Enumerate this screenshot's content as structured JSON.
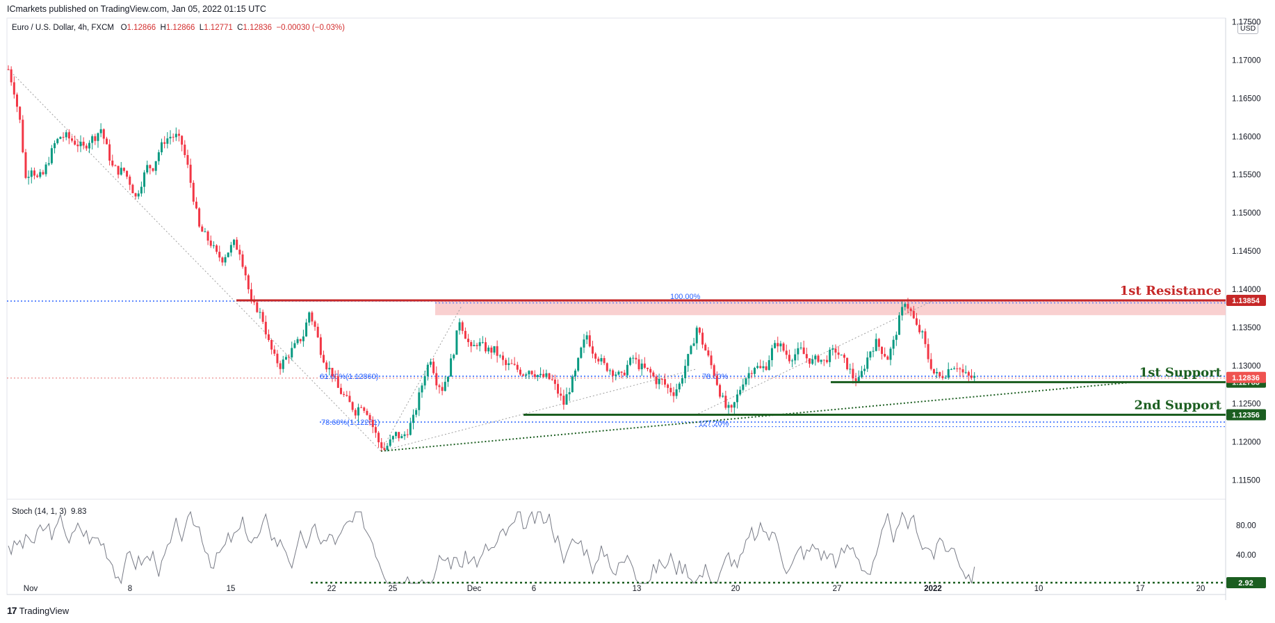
{
  "header": {
    "published": "ICmarkets published on TradingView.com, Jan 05, 2022 01:15 UTC"
  },
  "legend": {
    "symbol": "Euro / U.S. Dollar, 4h, FXCM",
    "open_label": "O",
    "open": "1.12866",
    "high_label": "H",
    "high": "1.12866",
    "low_label": "L",
    "low": "1.12771",
    "close_label": "C",
    "close": "1.12836",
    "change": "−0.00030 (−0.03%)"
  },
  "currency": "USD",
  "stoch_legend": {
    "name": "Stoch (14, 1, 3)",
    "value": "9.83"
  },
  "footer": {
    "brand": "TradingView",
    "logo_glyph": "17"
  },
  "colors": {
    "up": "#089981",
    "down": "#f23645",
    "resistance": "#c62828",
    "support": "#1b5e20",
    "fib": "#2962ff",
    "zone": "#f8c8c8",
    "price_line": "#e57373"
  },
  "chart_data": {
    "type": "candlestick",
    "symbol": "EURUSD",
    "timeframe": "4h",
    "ylim": [
      1.1125,
      1.1755
    ],
    "yticks": [
      "1.17500",
      "1.17000",
      "1.16500",
      "1.16000",
      "1.15500",
      "1.15000",
      "1.14500",
      "1.14000",
      "1.13500",
      "1.13000",
      "1.12500",
      "1.12000",
      "1.11500"
    ],
    "xticks": [
      "Nov",
      "8",
      "15",
      "22",
      "25",
      "Dec",
      "6",
      "13",
      "20",
      "27",
      "2022",
      "10",
      "17",
      "20"
    ],
    "levels": [
      {
        "name": "1st Resistance",
        "price": 1.13854,
        "badge": "1.13854"
      },
      {
        "name": "1st Support",
        "price": 1.12783,
        "badge": "1.12783"
      },
      {
        "name": "2nd Support",
        "price": 1.12356,
        "badge": "1.12356"
      },
      {
        "name": "",
        "price": 1.12836,
        "badge": "1.12836"
      }
    ],
    "fib_labels": [
      "100.00%",
      "61.80%(1.12860)",
      "78.60%(1.12261)",
      "78.60%",
      "127.20%"
    ],
    "resistance_zone": [
      1.1366,
      1.13854
    ],
    "close_path": [
      [
        0,
        1.1688
      ],
      [
        2,
        1.166
      ],
      [
        4,
        1.162
      ],
      [
        6,
        1.1545
      ],
      [
        8,
        1.156
      ],
      [
        10,
        1.1545
      ],
      [
        12,
        1.155
      ],
      [
        14,
        1.157
      ],
      [
        16,
        1.159
      ],
      [
        18,
        1.16
      ],
      [
        20,
        1.16
      ],
      [
        22,
        1.1595
      ],
      [
        24,
        1.159
      ],
      [
        26,
        1.1585
      ],
      [
        28,
        1.1595
      ],
      [
        30,
        1.16
      ],
      [
        32,
        1.161
      ],
      [
        34,
        1.1585
      ],
      [
        36,
        1.156
      ],
      [
        38,
        1.1555
      ],
      [
        40,
        1.1555
      ],
      [
        42,
        1.154
      ],
      [
        44,
        1.152
      ],
      [
        46,
        1.154
      ],
      [
        48,
        1.156
      ],
      [
        50,
        1.156
      ],
      [
        52,
        1.158
      ],
      [
        54,
        1.1595
      ],
      [
        56,
        1.16
      ],
      [
        58,
        1.16
      ],
      [
        60,
        1.159
      ],
      [
        62,
        1.156
      ],
      [
        64,
        1.152
      ],
      [
        66,
        1.148
      ],
      [
        68,
        1.147
      ],
      [
        70,
        1.146
      ],
      [
        72,
        1.1445
      ],
      [
        74,
        1.144
      ],
      [
        76,
        1.145
      ],
      [
        78,
        1.146
      ],
      [
        80,
        1.145
      ],
      [
        82,
        1.142
      ],
      [
        84,
        1.138
      ],
      [
        86,
        1.1375
      ],
      [
        88,
        1.136
      ],
      [
        90,
        1.133
      ],
      [
        92,
        1.131
      ],
      [
        94,
        1.13
      ],
      [
        96,
        1.131
      ],
      [
        98,
        1.132
      ],
      [
        100,
        1.133
      ],
      [
        102,
        1.134
      ],
      [
        104,
        1.137
      ],
      [
        106,
        1.135
      ],
      [
        108,
        1.132
      ],
      [
        110,
        1.13
      ],
      [
        112,
        1.129
      ],
      [
        114,
        1.127
      ],
      [
        116,
        1.126
      ],
      [
        118,
        1.125
      ],
      [
        120,
        1.124
      ],
      [
        122,
        1.125
      ],
      [
        124,
        1.124
      ],
      [
        126,
        1.122
      ],
      [
        128,
        1.12
      ],
      [
        130,
        1.119
      ],
      [
        132,
        1.12
      ],
      [
        134,
        1.121
      ],
      [
        136,
        1.1205
      ],
      [
        138,
        1.1215
      ],
      [
        140,
        1.123
      ],
      [
        142,
        1.126
      ],
      [
        144,
        1.129
      ],
      [
        146,
        1.131
      ],
      [
        148,
        1.128
      ],
      [
        150,
        1.127
      ],
      [
        152,
        1.129
      ],
      [
        154,
        1.132
      ],
      [
        156,
        1.136
      ],
      [
        158,
        1.134
      ],
      [
        160,
        1.132
      ],
      [
        162,
        1.133
      ],
      [
        164,
        1.1325
      ],
      [
        166,
        1.132
      ],
      [
        168,
        1.132
      ],
      [
        170,
        1.131
      ],
      [
        172,
        1.13
      ],
      [
        174,
        1.13
      ],
      [
        176,
        1.1295
      ],
      [
        178,
        1.129
      ],
      [
        180,
        1.1295
      ],
      [
        182,
        1.129
      ],
      [
        184,
        1.1285
      ],
      [
        186,
        1.1285
      ],
      [
        188,
        1.128
      ],
      [
        190,
        1.1265
      ],
      [
        192,
        1.125
      ],
      [
        194,
        1.127
      ],
      [
        196,
        1.129
      ],
      [
        198,
        1.132
      ],
      [
        200,
        1.134
      ],
      [
        202,
        1.132
      ],
      [
        204,
        1.131
      ],
      [
        206,
        1.13
      ],
      [
        208,
        1.1295
      ],
      [
        210,
        1.129
      ],
      [
        212,
        1.1285
      ],
      [
        214,
        1.13
      ],
      [
        216,
        1.131
      ],
      [
        218,
        1.13
      ],
      [
        220,
        1.1295
      ],
      [
        222,
        1.129
      ],
      [
        224,
        1.128
      ],
      [
        226,
        1.128
      ],
      [
        228,
        1.127
      ],
      [
        230,
        1.1265
      ],
      [
        232,
        1.1275
      ],
      [
        234,
        1.13
      ],
      [
        236,
        1.132
      ],
      [
        238,
        1.135
      ],
      [
        240,
        1.133
      ],
      [
        242,
        1.131
      ],
      [
        244,
        1.129
      ],
      [
        246,
        1.1265
      ],
      [
        248,
        1.1245
      ],
      [
        250,
        1.124
      ],
      [
        252,
        1.126
      ],
      [
        254,
        1.128
      ],
      [
        256,
        1.129
      ],
      [
        258,
        1.13
      ],
      [
        260,
        1.1295
      ],
      [
        262,
        1.13
      ],
      [
        264,
        1.132
      ],
      [
        266,
        1.133
      ],
      [
        268,
        1.132
      ],
      [
        270,
        1.131
      ],
      [
        272,
        1.1315
      ],
      [
        274,
        1.132
      ],
      [
        276,
        1.131
      ],
      [
        278,
        1.1305
      ],
      [
        280,
        1.131
      ],
      [
        282,
        1.1305
      ],
      [
        284,
        1.1315
      ],
      [
        286,
        1.132
      ],
      [
        288,
        1.131
      ],
      [
        290,
        1.13
      ],
      [
        292,
        1.1285
      ],
      [
        294,
        1.128
      ],
      [
        296,
        1.13
      ],
      [
        298,
        1.132
      ],
      [
        300,
        1.133
      ],
      [
        302,
        1.132
      ],
      [
        304,
        1.131
      ],
      [
        306,
        1.133
      ],
      [
        308,
        1.136
      ],
      [
        310,
        1.1385
      ],
      [
        312,
        1.137
      ],
      [
        314,
        1.135
      ],
      [
        316,
        1.134
      ],
      [
        318,
        1.131
      ],
      [
        320,
        1.129
      ],
      [
        322,
        1.1285
      ],
      [
        324,
        1.129
      ],
      [
        326,
        1.13
      ],
      [
        328,
        1.13
      ],
      [
        330,
        1.129
      ],
      [
        332,
        1.1285
      ],
      [
        334,
        1.1284
      ]
    ],
    "stoch": {
      "ylim": [
        0,
        100
      ],
      "levels": [
        80,
        40
      ],
      "value": 9.83,
      "signal_badge": "2.92",
      "ticks": [
        "80.00",
        "40.00"
      ]
    }
  }
}
